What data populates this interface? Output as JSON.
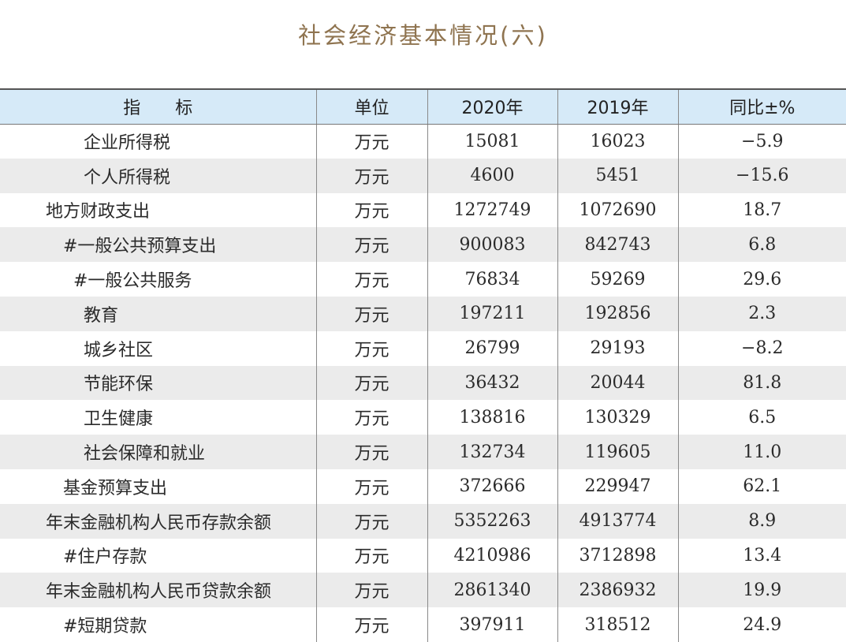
{
  "title": "社会经济基本情况(六)",
  "table": {
    "headers": [
      "指　　标",
      "单位",
      "2020年",
      "2019年",
      "同比±%"
    ],
    "rows": [
      {
        "name": "企业所得税",
        "unit": "万元",
        "v2020": "15081",
        "v2019": "16023",
        "change": "−5.9",
        "indent": 4
      },
      {
        "name": "个人所得税",
        "unit": "万元",
        "v2020": "4600",
        "v2019": "5451",
        "change": "−15.6",
        "indent": 4
      },
      {
        "name": "地方财政支出",
        "unit": "万元",
        "v2020": "1272749",
        "v2019": "1072690",
        "change": "18.7",
        "indent": 1
      },
      {
        "name": "#一般公共预算支出",
        "unit": "万元",
        "v2020": "900083",
        "v2019": "842743",
        "change": "6.8",
        "indent": 2
      },
      {
        "name": "#一般公共服务",
        "unit": "万元",
        "v2020": "76834",
        "v2019": "59269",
        "change": "29.6",
        "indent": 3
      },
      {
        "name": "教育",
        "unit": "万元",
        "v2020": "197211",
        "v2019": "192856",
        "change": "2.3",
        "indent": 4
      },
      {
        "name": "城乡社区",
        "unit": "万元",
        "v2020": "26799",
        "v2019": "29193",
        "change": "−8.2",
        "indent": 4
      },
      {
        "name": "节能环保",
        "unit": "万元",
        "v2020": "36432",
        "v2019": "20044",
        "change": "81.8",
        "indent": 4
      },
      {
        "name": "卫生健康",
        "unit": "万元",
        "v2020": "138816",
        "v2019": "130329",
        "change": "6.5",
        "indent": 4
      },
      {
        "name": "社会保障和就业",
        "unit": "万元",
        "v2020": "132734",
        "v2019": "119605",
        "change": "11.0",
        "indent": 4
      },
      {
        "name": "基金预算支出",
        "unit": "万元",
        "v2020": "372666",
        "v2019": "229947",
        "change": "62.1",
        "indent": 2
      },
      {
        "name": "年末金融机构人民币存款余额",
        "unit": "万元",
        "v2020": "5352263",
        "v2019": "4913774",
        "change": "8.9",
        "indent": 1
      },
      {
        "name": "#住户存款",
        "unit": "万元",
        "v2020": "4210986",
        "v2019": "3712898",
        "change": "13.4",
        "indent": 2
      },
      {
        "name": "年末金融机构人民币贷款余额",
        "unit": "万元",
        "v2020": "2861340",
        "v2019": "2386932",
        "change": "19.9",
        "indent": 1
      },
      {
        "name": "#短期贷款",
        "unit": "万元",
        "v2020": "397911",
        "v2019": "318512",
        "change": "24.9",
        "indent": 2
      }
    ]
  }
}
